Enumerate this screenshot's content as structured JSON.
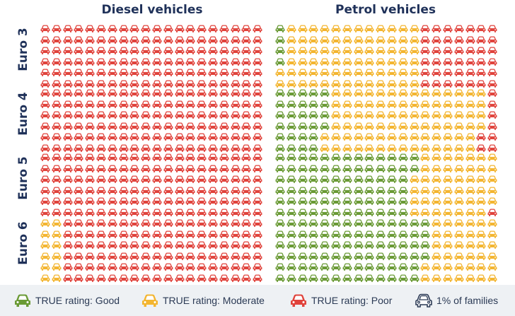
{
  "chart_data": {
    "type": "waffle",
    "columns": [
      "Diesel vehicles",
      "Petrol vehicles"
    ],
    "rows": [
      "Euro 3",
      "Euro 4",
      "Euro 5",
      "Euro 6"
    ],
    "unit_label": "1% of families",
    "categories": [
      {
        "key": "good",
        "label": "TRUE rating: Good",
        "color": "#6a9a35"
      },
      {
        "key": "moderate",
        "label": "TRUE rating: Moderate",
        "color": "#f3b530"
      },
      {
        "key": "poor",
        "label": "TRUE rating: Poor",
        "color": "#e0433c"
      }
    ],
    "grid": {
      "rows_per_block": 6,
      "icons_per_row": 20,
      "icons_per_block": 100
    },
    "values": {
      "Diesel vehicles": {
        "Euro 3": {
          "good": 0,
          "moderate": 0,
          "poor": 100
        },
        "Euro 4": {
          "good": 0,
          "moderate": 0,
          "poor": 100
        },
        "Euro 5": {
          "good": 0,
          "moderate": 0,
          "poor": 100
        },
        "Euro 6": {
          "good": 0,
          "moderate": 10,
          "poor": 90
        }
      },
      "Petrol vehicles": {
        "Euro 3": {
          "good": 3,
          "moderate": 62,
          "poor": 35
        },
        "Euro 4": {
          "good": 23,
          "moderate": 70,
          "poor": 7
        },
        "Euro 5": {
          "good": 62,
          "moderate": 37,
          "poor": 1
        },
        "Euro 6": {
          "good": 68,
          "moderate": 32,
          "poor": 0
        }
      }
    }
  },
  "legend": {
    "good": "TRUE rating: Good",
    "moderate": "TRUE rating: Moderate",
    "poor": "TRUE rating: Poor",
    "unit": "1% of families"
  },
  "colors": {
    "good": "#6a9a35",
    "moderate": "#f3b530",
    "poor": "#e0433c",
    "outline": "#2b3a55",
    "title": "#1f3159",
    "legend_bg": "#eef1f4"
  },
  "icons": {
    "car": "car-icon"
  }
}
